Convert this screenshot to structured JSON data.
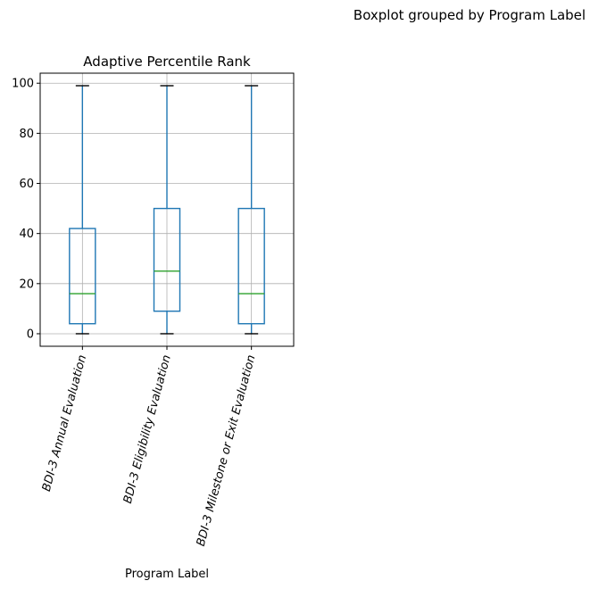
{
  "chart_data": {
    "type": "boxplot",
    "suptitle": "Boxplot grouped by Program Label",
    "title": "Adaptive Percentile Rank",
    "xlabel": "Program Label",
    "ylabel": "",
    "ylim": [
      -5,
      104
    ],
    "yticks": [
      0,
      20,
      40,
      60,
      80,
      100
    ],
    "grid": true,
    "categories": [
      "BDI-3 Annual Evaluation",
      "BDI-3 Eligibility Evaluation",
      "BDI-3 Milestone or Exit Evaluation"
    ],
    "boxes": [
      {
        "whisker_low": 0,
        "q1": 4,
        "median": 16,
        "q3": 42,
        "whisker_high": 99
      },
      {
        "whisker_low": 0,
        "q1": 9,
        "median": 25,
        "q3": 50,
        "whisker_high": 99
      },
      {
        "whisker_low": 0,
        "q1": 4,
        "median": 16,
        "q3": 50,
        "whisker_high": 99
      }
    ],
    "colors": {
      "box": "#1f77b4",
      "median": "#2ca02c",
      "cap": "#000000",
      "grid": "#b0b0b0",
      "axis": "#000000"
    }
  }
}
